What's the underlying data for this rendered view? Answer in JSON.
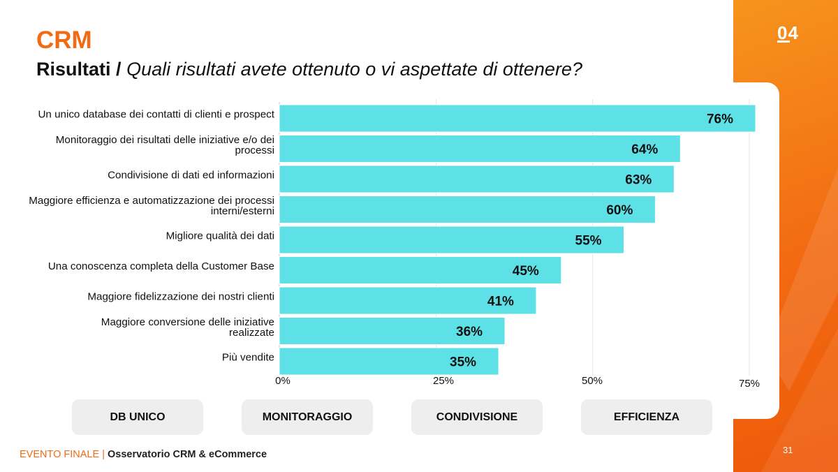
{
  "header": {
    "title": "CRM",
    "subtitle_lead": "Risultati",
    "subtitle_separator": "/",
    "subtitle_question": "Quali risultati avete ottenuto o vi aspettate di ottenere?",
    "section_number": "04"
  },
  "chart_data": {
    "type": "bar",
    "orientation": "horizontal",
    "categories": [
      "Un unico database dei contatti di clienti e prospect",
      "Monitoraggio dei risultati delle iniziative e/o dei processi",
      "Condivisione di dati ed informazioni",
      "Maggiore efficienza e automatizzazione dei processi interni/esterni",
      "Migliore qualità dei dati",
      "Una conoscenza completa della Customer Base",
      "Maggiore fidelizzazione dei nostri clienti",
      "Maggiore conversione delle iniziative realizzate",
      "Più vendite"
    ],
    "category_lines": [
      [
        "Un unico database dei contatti di clienti e prospect"
      ],
      [
        "Monitoraggio dei risultati delle iniziative e/o dei",
        "processi"
      ],
      [
        "Condivisione di dati ed informazioni"
      ],
      [
        "Maggiore efficienza e automatizzazione dei processi",
        "interni/esterni"
      ],
      [
        "Migliore qualità dei dati"
      ],
      [
        "Una conoscenza completa della Customer Base"
      ],
      [
        "Maggiore fidelizzazione dei nostri clienti"
      ],
      [
        "Maggiore conversione delle iniziative",
        "realizzate"
      ],
      [
        "Più vendite"
      ]
    ],
    "values": [
      76,
      64,
      63,
      60,
      55,
      45,
      41,
      36,
      35
    ],
    "value_labels": [
      "76%",
      "64%",
      "63%",
      "60%",
      "55%",
      "45%",
      "41%",
      "36%",
      "35%"
    ],
    "xlim": [
      0,
      75
    ],
    "x_ticks": [
      0,
      25,
      50,
      75
    ],
    "x_tick_labels": [
      "0%",
      "25%",
      "50%",
      "75%"
    ],
    "bar_color": "#5de0e6",
    "grid": true,
    "legend": "none"
  },
  "tags": [
    "DB UNICO",
    "MONITORAGGIO",
    "CONDIVISIONE",
    "EFFICIENZA"
  ],
  "footer": {
    "event": "EVENTO FINALE",
    "separator": "|",
    "observatory": "Osservatorio CRM & eCommerce"
  },
  "page_number": "31",
  "colors": {
    "accent": "#f26a12",
    "bar": "#5de0e6",
    "tag_background": "#eeeeee"
  }
}
